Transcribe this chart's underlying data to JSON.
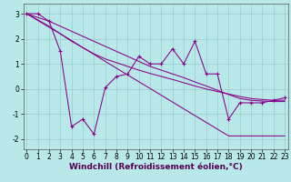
{
  "xlabel": "Windchill (Refroidissement éolien,°C)",
  "background_color": "#b8e8e8",
  "grid_color": "#99cccc",
  "line_color": "#880088",
  "x_data": [
    0,
    1,
    2,
    3,
    4,
    5,
    6,
    7,
    8,
    9,
    10,
    11,
    12,
    13,
    14,
    15,
    16,
    17,
    18,
    19,
    20,
    21,
    22,
    23
  ],
  "y_main": [
    3.0,
    3.0,
    2.7,
    1.5,
    -1.5,
    -1.2,
    -1.8,
    0.05,
    0.5,
    0.6,
    1.3,
    1.0,
    1.0,
    1.6,
    1.0,
    1.9,
    0.6,
    0.6,
    -1.2,
    -0.55,
    -0.55,
    -0.55,
    -0.45,
    -0.35
  ],
  "y_smooth1": [
    3.0,
    2.75,
    2.5,
    2.2,
    1.9,
    1.65,
    1.4,
    1.2,
    1.05,
    0.9,
    0.75,
    0.62,
    0.5,
    0.38,
    0.25,
    0.12,
    0.0,
    -0.1,
    -0.2,
    -0.3,
    -0.38,
    -0.42,
    -0.45,
    -0.45
  ],
  "y_smooth2": [
    3.0,
    2.85,
    2.7,
    2.5,
    2.3,
    2.1,
    1.9,
    1.7,
    1.5,
    1.3,
    1.1,
    0.9,
    0.75,
    0.6,
    0.45,
    0.28,
    0.12,
    -0.05,
    -0.22,
    -0.38,
    -0.45,
    -0.48,
    -0.5,
    -0.5
  ],
  "y_linear": [
    3.0,
    2.73,
    2.46,
    2.2,
    1.93,
    1.65,
    1.38,
    1.1,
    0.83,
    0.56,
    0.29,
    0.02,
    -0.25,
    -0.52,
    -0.79,
    -1.06,
    -1.33,
    -1.6,
    -1.87,
    -1.87,
    -1.87,
    -1.87,
    -1.87,
    -1.87
  ],
  "ylim": [
    -2.4,
    3.4
  ],
  "xlim": [
    -0.3,
    23.3
  ],
  "yticks": [
    -2,
    -1,
    0,
    1,
    2,
    3
  ],
  "xticks": [
    0,
    1,
    2,
    3,
    4,
    5,
    6,
    7,
    8,
    9,
    10,
    11,
    12,
    13,
    14,
    15,
    16,
    17,
    18,
    19,
    20,
    21,
    22,
    23
  ],
  "tick_fontsize": 5.5,
  "xlabel_fontsize": 6.5,
  "xlabel_color": "#550055"
}
